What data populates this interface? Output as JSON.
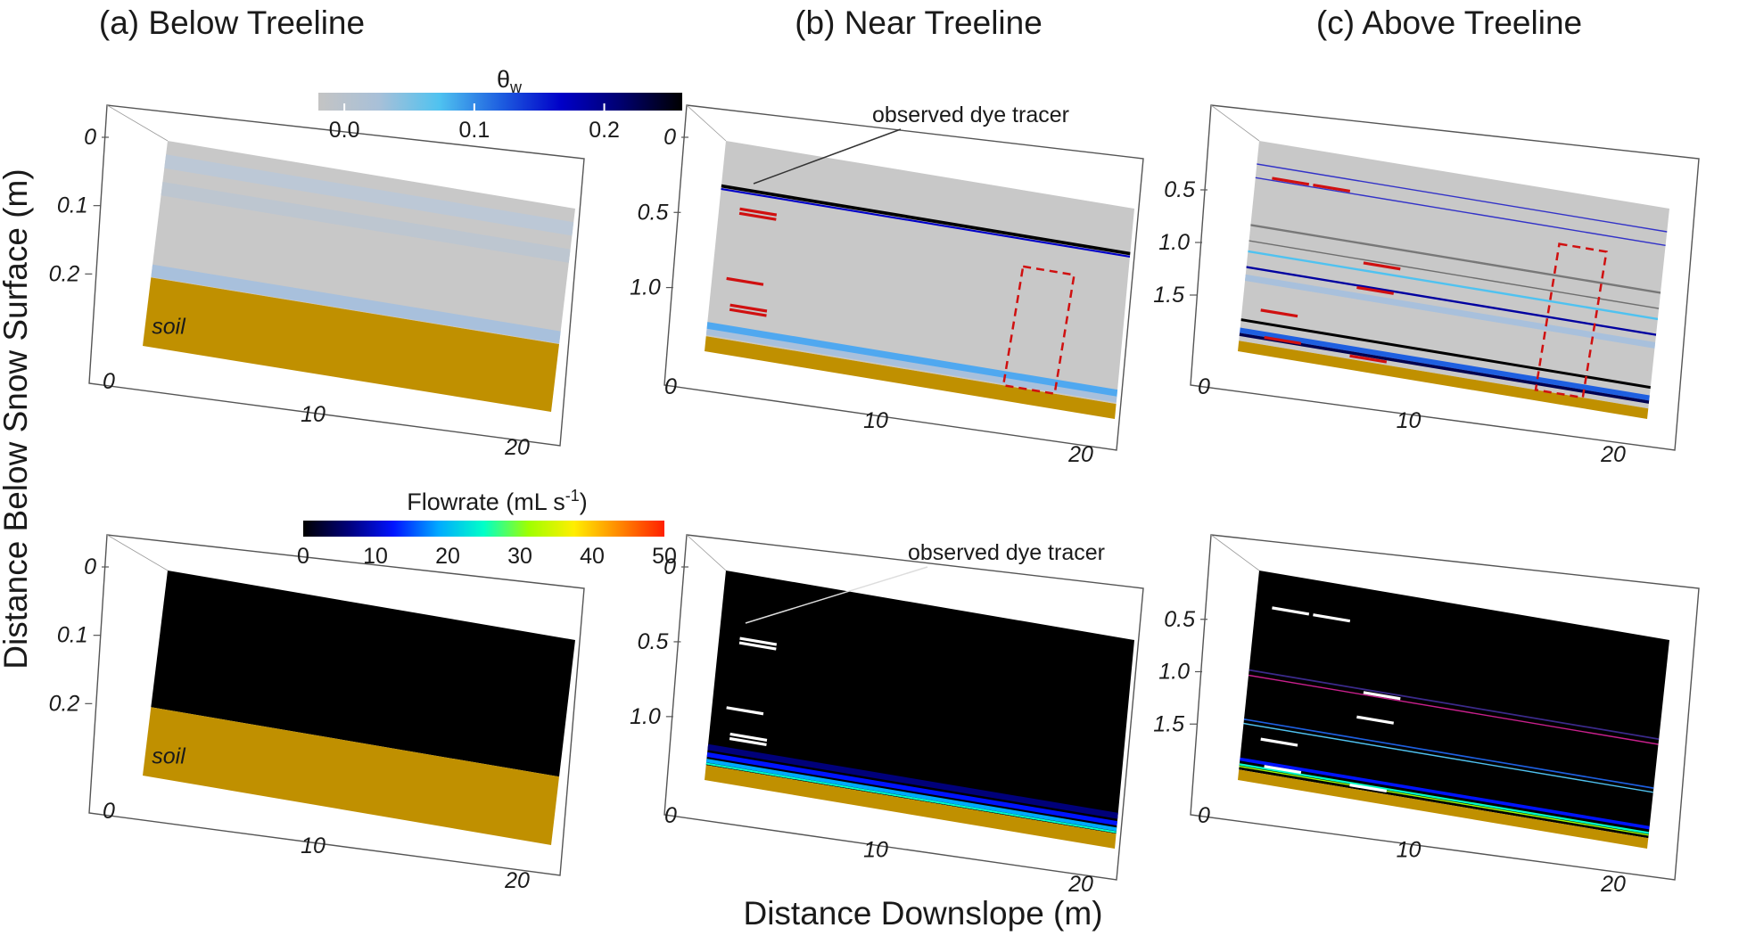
{
  "figure": {
    "column_titles": [
      "(a) Below Treeline",
      "(b) Near Treeline",
      "(c) Above Treeline"
    ],
    "y_label": "Distance Below Snow Surface (m)",
    "x_label": "Distance Downslope (m)",
    "annotation_label": "observed dye tracer",
    "soil_label": "soil"
  },
  "colorbars": {
    "moisture": {
      "title": "θ",
      "title_subscript": "w",
      "ticks": [
        "0.0",
        "0.1",
        "0.2"
      ],
      "tick_values": [
        0.0,
        0.1,
        0.2
      ],
      "range": [
        -0.02,
        0.26
      ],
      "stops": [
        "#c4c4c4",
        "#a8c0d8",
        "#4fc2f0",
        "#1e5fe0",
        "#0000c8",
        "#00006e",
        "#000000"
      ]
    },
    "flowrate": {
      "title": "Flowrate (mL s",
      "title_superscript": "-1",
      "title_suffix": ")",
      "ticks": [
        "0",
        "10",
        "20",
        "30",
        "40",
        "50"
      ],
      "tick_values": [
        0,
        10,
        20,
        30,
        40,
        50
      ],
      "range": [
        0,
        50
      ],
      "stops": [
        "#000000",
        "#00007a",
        "#0014ff",
        "#00aaff",
        "#00ffc8",
        "#a0ff00",
        "#ffee00",
        "#ff8800",
        "#ff2000"
      ]
    }
  },
  "chart_data": [
    {
      "type": "heatmap",
      "panel": "top-a",
      "variable": "theta_w",
      "x_ticks": [
        "0",
        "10",
        "20"
      ],
      "x_tick_values": [
        0,
        10,
        20
      ],
      "y_ticks": [
        "0",
        "0.1",
        "0.2"
      ],
      "y_tick_values": [
        0,
        0.1,
        0.2
      ],
      "xlim": [
        0,
        20
      ],
      "ylim": [
        0,
        0.3
      ],
      "background": "#c8c8c8",
      "soil_color": "#c09000",
      "snow_bottom": 0.2,
      "layers": [
        {
          "depth": 0.03,
          "color": "#bcc8d6",
          "width": 0.02
        },
        {
          "depth": 0.07,
          "color": "#bdc6d0",
          "width": 0.02
        },
        {
          "depth": 0.19,
          "color": "#a8c0dc",
          "width": 0.018
        }
      ],
      "dye_tracer_marks": []
    },
    {
      "type": "heatmap",
      "panel": "top-b",
      "variable": "theta_w",
      "x_ticks": [
        "0",
        "10",
        "20"
      ],
      "x_tick_values": [
        0,
        10,
        20
      ],
      "y_ticks": [
        "0",
        "0.5",
        "1.0"
      ],
      "y_tick_values": [
        0,
        0.5,
        1.0
      ],
      "xlim": [
        0,
        20
      ],
      "ylim": [
        0,
        1.4
      ],
      "background": "#c8c8c8",
      "soil_color": "#c09000",
      "snow_bottom": 1.3,
      "layers": [
        {
          "depth": 0.3,
          "color": "#000000",
          "width": 0.022
        },
        {
          "depth": 0.32,
          "color": "#0000c8",
          "width": 0.012
        },
        {
          "depth": 1.23,
          "color": "#4fa8f0",
          "width": 0.05
        },
        {
          "depth": 1.27,
          "color": "#a8c0dc",
          "width": 0.04
        }
      ],
      "dye_tracer_marks": [
        {
          "x": 1.0,
          "depth": 0.43
        },
        {
          "x": 1.0,
          "depth": 0.46
        },
        {
          "x": 0.7,
          "depth": 0.9
        },
        {
          "x": 1.0,
          "depth": 1.07
        },
        {
          "x": 1.0,
          "depth": 1.1
        }
      ],
      "sample_box": {
        "x0": 14.5,
        "x1": 17.0,
        "top": 0.5,
        "bottom": 1.3
      }
    },
    {
      "type": "heatmap",
      "panel": "top-c",
      "variable": "theta_w",
      "x_ticks": [
        "0",
        "10",
        "20"
      ],
      "x_tick_values": [
        0,
        10,
        20
      ],
      "y_ticks": [
        "0.5",
        "1.0",
        "1.5"
      ],
      "y_tick_values": [
        0.5,
        1.0,
        1.5
      ],
      "xlim": [
        0,
        20
      ],
      "ylim": [
        0,
        2.0
      ],
      "background": "#c8c8c8",
      "soil_color": "#c09000",
      "snow_bottom": 1.9,
      "layers": [
        {
          "depth": 0.22,
          "color": "#3232c8",
          "width": 0.012
        },
        {
          "depth": 0.35,
          "color": "#3232c8",
          "width": 0.012
        },
        {
          "depth": 0.8,
          "color": "#787878",
          "width": 0.02
        },
        {
          "depth": 0.95,
          "color": "#6e6e6e",
          "width": 0.012
        },
        {
          "depth": 1.05,
          "color": "#4fc2f0",
          "width": 0.02
        },
        {
          "depth": 1.2,
          "color": "#0000a0",
          "width": 0.02
        },
        {
          "depth": 1.3,
          "color": "#a8c0dc",
          "width": 0.06
        },
        {
          "depth": 1.7,
          "color": "#000000",
          "width": 0.025
        },
        {
          "depth": 1.8,
          "color": "#1e5fe0",
          "width": 0.05
        },
        {
          "depth": 1.84,
          "color": "#000050",
          "width": 0.03
        }
      ],
      "dye_tracer_marks": [
        {
          "x": 0.8,
          "depth": 0.33
        },
        {
          "x": 2.8,
          "depth": 0.33
        },
        {
          "x": 5.6,
          "depth": 0.98
        },
        {
          "x": 5.4,
          "depth": 1.22
        },
        {
          "x": 0.9,
          "depth": 1.58
        },
        {
          "x": 1.2,
          "depth": 1.83
        },
        {
          "x": 5.4,
          "depth": 1.87
        }
      ],
      "sample_box": {
        "x0": 14.5,
        "x1": 16.8,
        "top": 0.5,
        "bottom": 1.9
      }
    },
    {
      "type": "heatmap",
      "panel": "bottom-a",
      "variable": "flowrate",
      "x_ticks": [
        "0",
        "10",
        "20"
      ],
      "x_tick_values": [
        0,
        10,
        20
      ],
      "y_ticks": [
        "0",
        "0.1",
        "0.2"
      ],
      "y_tick_values": [
        0,
        0.1,
        0.2
      ],
      "xlim": [
        0,
        20
      ],
      "ylim": [
        0,
        0.3
      ],
      "background": "#000000",
      "soil_color": "#c09000",
      "snow_bottom": 0.2,
      "layers": [],
      "dye_tracer_marks": []
    },
    {
      "type": "heatmap",
      "panel": "bottom-b",
      "variable": "flowrate",
      "x_ticks": [
        "0",
        "10",
        "20"
      ],
      "x_tick_values": [
        0,
        10,
        20
      ],
      "y_ticks": [
        "0",
        "0.5",
        "1.0"
      ],
      "y_tick_values": [
        0,
        0.5,
        1.0
      ],
      "xlim": [
        0,
        20
      ],
      "ylim": [
        0,
        1.4
      ],
      "background": "#000000",
      "soil_color": "#c09000",
      "snow_bottom": 1.3,
      "layers": [
        {
          "depth": 1.18,
          "color": "#00007a",
          "width": 0.04
        },
        {
          "depth": 1.23,
          "color": "#0014ff",
          "width": 0.03
        },
        {
          "depth": 1.27,
          "color": "#00aaff",
          "width": 0.025
        },
        {
          "depth": 1.29,
          "color": "#00ffc8",
          "width": 0.012
        }
      ],
      "dye_tracer_marks": [
        {
          "x": 1.0,
          "depth": 0.43
        },
        {
          "x": 1.0,
          "depth": 0.46
        },
        {
          "x": 0.7,
          "depth": 0.9
        },
        {
          "x": 1.0,
          "depth": 1.07
        },
        {
          "x": 1.0,
          "depth": 1.1
        }
      ]
    },
    {
      "type": "heatmap",
      "panel": "bottom-c",
      "variable": "flowrate",
      "x_ticks": [
        "0",
        "10",
        "20"
      ],
      "x_tick_values": [
        0,
        10,
        20
      ],
      "y_ticks": [
        "0.5",
        "1.0",
        "1.5"
      ],
      "y_tick_values": [
        0.5,
        1.0,
        1.5
      ],
      "xlim": [
        0,
        20
      ],
      "ylim": [
        0,
        2.0
      ],
      "background": "#000000",
      "soil_color": "#c09000",
      "snow_bottom": 1.9,
      "layers": [
        {
          "depth": 0.95,
          "color": "#3a2a8a",
          "width": 0.015
        },
        {
          "depth": 1.0,
          "color": "#c8208c",
          "width": 0.012
        },
        {
          "depth": 1.42,
          "color": "#1e5fe0",
          "width": 0.015
        },
        {
          "depth": 1.46,
          "color": "#4fc2f0",
          "width": 0.012
        },
        {
          "depth": 1.8,
          "color": "#0014ff",
          "width": 0.03
        },
        {
          "depth": 1.85,
          "color": "#00ffc8",
          "width": 0.02
        },
        {
          "depth": 1.87,
          "color": "#a0ff00",
          "width": 0.012
        }
      ],
      "dye_tracer_marks": [
        {
          "x": 0.8,
          "depth": 0.33
        },
        {
          "x": 2.8,
          "depth": 0.33
        },
        {
          "x": 5.6,
          "depth": 0.98
        },
        {
          "x": 5.4,
          "depth": 1.22
        },
        {
          "x": 0.9,
          "depth": 1.58
        },
        {
          "x": 1.2,
          "depth": 1.83
        },
        {
          "x": 5.4,
          "depth": 1.87
        }
      ]
    }
  ]
}
